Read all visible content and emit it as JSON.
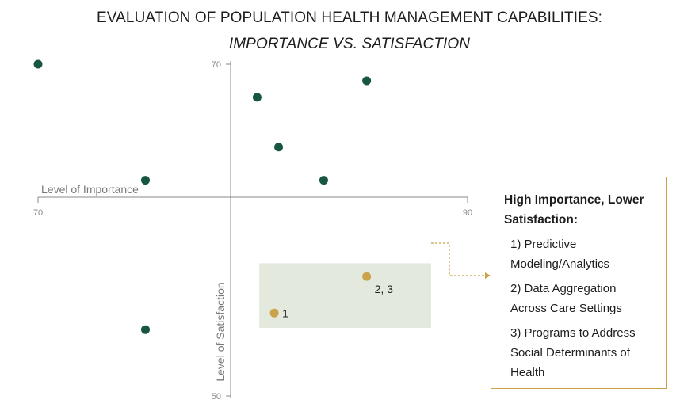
{
  "title_line1": "EVALUATION OF POPULATION HEALTH MANAGEMENT CAPABILITIES:",
  "title_line2": "IMPORTANCE VS. SATISFACTION",
  "colors": {
    "default_point": "#18573f",
    "highlight_point": "#c9a24a",
    "highlight_region": "#e3e9dc",
    "axis": "#8a8a8a",
    "axis_label": "#7a7a7a"
  },
  "chart_data": {
    "type": "scatter",
    "xlabel": "Level of Importance",
    "ylabel": "Level of Satisfaction",
    "xlim": [
      70,
      90
    ],
    "ylim": [
      50,
      70
    ],
    "x_ticks": [
      "70",
      "90"
    ],
    "y_ticks": [
      "70",
      "50"
    ],
    "points": [
      {
        "x": 70.0,
        "y": 70.0,
        "highlight": false,
        "label": ""
      },
      {
        "x": 75.0,
        "y": 63.0,
        "highlight": false,
        "label": ""
      },
      {
        "x": 80.2,
        "y": 68.0,
        "highlight": false,
        "label": ""
      },
      {
        "x": 81.2,
        "y": 65.0,
        "highlight": false,
        "label": ""
      },
      {
        "x": 83.3,
        "y": 63.0,
        "highlight": false,
        "label": ""
      },
      {
        "x": 85.3,
        "y": 69.0,
        "highlight": false,
        "label": ""
      },
      {
        "x": 75.0,
        "y": 54.0,
        "highlight": false,
        "label": ""
      },
      {
        "x": 85.3,
        "y": 57.2,
        "highlight": true,
        "label": "2, 3"
      },
      {
        "x": 81.0,
        "y": 55.0,
        "highlight": true,
        "label": "1"
      }
    ],
    "highlight_region": {
      "x": [
        80.3,
        88.3
      ],
      "y": [
        54.1,
        58.0
      ]
    }
  },
  "callout": {
    "heading_line1": "High Importance, Lower",
    "heading_line2": "Satisfaction:",
    "items": [
      {
        "line1": "1) Predictive",
        "line2": "Modeling/Analytics",
        "line3": ""
      },
      {
        "line1": "2) Data Aggregation",
        "line2": "Across Care Settings",
        "line3": ""
      },
      {
        "line1": "3) Programs to Address",
        "line2": "Social Determinants of",
        "line3": "Health"
      }
    ]
  }
}
